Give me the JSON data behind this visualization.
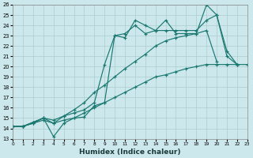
{
  "xlabel": "Humidex (Indice chaleur)",
  "bg_color": "#cce8ec",
  "grid_color": "#b8d8dc",
  "line_color": "#1a7870",
  "xlim": [
    0,
    23
  ],
  "ylim": [
    13,
    26
  ],
  "xticks": [
    0,
    1,
    2,
    3,
    4,
    5,
    6,
    7,
    8,
    9,
    10,
    11,
    12,
    13,
    14,
    15,
    16,
    17,
    18,
    19,
    20,
    21,
    22,
    23
  ],
  "yticks": [
    13,
    14,
    15,
    16,
    17,
    18,
    19,
    20,
    21,
    22,
    23,
    24,
    25,
    26
  ],
  "series": [
    {
      "x": [
        0,
        1,
        2,
        3,
        4,
        5,
        6,
        7,
        8,
        9,
        10,
        11,
        12,
        13,
        14,
        15,
        16,
        17,
        18,
        19,
        20,
        21,
        22
      ],
      "y": [
        14.2,
        14.2,
        14.6,
        15.0,
        13.2,
        14.5,
        15.0,
        15.1,
        16.2,
        16.5,
        23.0,
        22.8,
        24.5,
        24.0,
        23.5,
        24.5,
        23.2,
        23.2,
        23.2,
        26.0,
        25.0,
        21.0,
        20.2
      ]
    },
    {
      "x": [
        0,
        1,
        2,
        3,
        4,
        5,
        6,
        7,
        8,
        9,
        10,
        11,
        12,
        13,
        14,
        15,
        16,
        17,
        18,
        19,
        20,
        21,
        22
      ],
      "y": [
        14.2,
        14.2,
        14.6,
        15.0,
        14.8,
        15.2,
        15.5,
        15.8,
        16.5,
        20.2,
        23.0,
        23.2,
        24.0,
        23.2,
        23.5,
        23.5,
        23.5,
        23.5,
        23.5,
        24.5,
        25.0,
        21.5,
        20.2
      ]
    },
    {
      "x": [
        0,
        1,
        2,
        3,
        4,
        5,
        6,
        7,
        8,
        9,
        10,
        11,
        12,
        13,
        14,
        15,
        16,
        17,
        18,
        19,
        20,
        21,
        22,
        23
      ],
      "y": [
        14.2,
        14.2,
        14.5,
        14.8,
        14.5,
        14.8,
        15.0,
        15.5,
        16.0,
        16.5,
        17.0,
        17.5,
        18.0,
        18.5,
        19.0,
        19.2,
        19.5,
        19.8,
        20.0,
        20.2,
        20.2,
        20.2,
        20.2,
        20.2
      ]
    },
    {
      "x": [
        0,
        1,
        2,
        3,
        4,
        5,
        6,
        7,
        8,
        9,
        10,
        11,
        12,
        13,
        14,
        15,
        16,
        17,
        18,
        19,
        20
      ],
      "y": [
        14.2,
        14.2,
        14.5,
        15.0,
        14.5,
        15.2,
        15.8,
        16.5,
        17.5,
        18.2,
        19.0,
        19.8,
        20.5,
        21.2,
        22.0,
        22.5,
        22.8,
        23.0,
        23.2,
        23.5,
        20.5
      ]
    }
  ]
}
